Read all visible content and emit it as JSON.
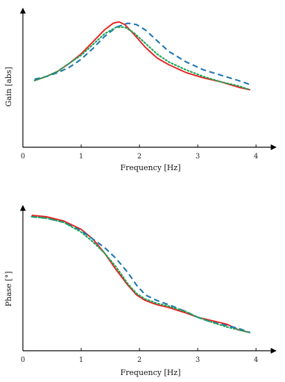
{
  "colors": {
    "red": "#e8231f",
    "blue": "#1f77b4",
    "green": "#1aa55a",
    "axis": "#000000"
  },
  "chart_data": [
    {
      "type": "line",
      "xlabel": "Frequency [Hz]",
      "ylabel": "Gain [abs]",
      "xlim": [
        0,
        4.2
      ],
      "ylim": [
        0,
        1
      ],
      "xticks": [
        0,
        1,
        2,
        3,
        4
      ],
      "show_yticks": false,
      "grid": false,
      "legend": "none",
      "series": [
        {
          "color": "#e8231f",
          "style": "solid",
          "x": [
            0.2,
            0.4,
            0.6,
            0.8,
            1.0,
            1.2,
            1.4,
            1.55,
            1.65,
            1.75,
            1.9,
            2.1,
            2.3,
            2.5,
            2.8,
            3.1,
            3.4,
            3.7,
            3.9
          ],
          "y": [
            0.5,
            0.53,
            0.57,
            0.63,
            0.7,
            0.79,
            0.88,
            0.93,
            0.94,
            0.92,
            0.85,
            0.75,
            0.67,
            0.62,
            0.56,
            0.52,
            0.49,
            0.45,
            0.43
          ]
        },
        {
          "color": "#1f77b4",
          "style": "dashed",
          "x": [
            0.2,
            0.4,
            0.6,
            0.8,
            1.0,
            1.2,
            1.4,
            1.6,
            1.8,
            1.95,
            2.1,
            2.3,
            2.5,
            2.8,
            3.1,
            3.4,
            3.7,
            3.9
          ],
          "y": [
            0.51,
            0.53,
            0.56,
            0.6,
            0.66,
            0.74,
            0.83,
            0.9,
            0.93,
            0.92,
            0.88,
            0.8,
            0.72,
            0.64,
            0.58,
            0.54,
            0.5,
            0.47
          ]
        },
        {
          "color": "#1aa55a",
          "style": "dotted",
          "x": [
            0.2,
            0.4,
            0.6,
            0.8,
            1.0,
            1.2,
            1.4,
            1.6,
            1.75,
            1.9,
            2.1,
            2.3,
            2.5,
            2.8,
            3.1,
            3.4,
            3.7,
            3.9
          ],
          "y": [
            0.5,
            0.53,
            0.57,
            0.63,
            0.69,
            0.77,
            0.85,
            0.9,
            0.9,
            0.86,
            0.78,
            0.7,
            0.64,
            0.58,
            0.53,
            0.49,
            0.46,
            0.43
          ]
        }
      ]
    },
    {
      "type": "line",
      "xlabel": "Frequency [Hz]",
      "ylabel": "Phase [°]",
      "xlim": [
        0,
        4.2
      ],
      "ylim": [
        0,
        1
      ],
      "xticks": [
        0,
        1,
        2,
        3,
        4
      ],
      "show_yticks": false,
      "grid": false,
      "legend": "none",
      "series": [
        {
          "color": "#e8231f",
          "style": "solid",
          "x": [
            0.15,
            0.4,
            0.7,
            1.0,
            1.2,
            1.4,
            1.6,
            1.8,
            1.95,
            2.1,
            2.3,
            2.5,
            2.8,
            3.0,
            3.2,
            3.5,
            3.7,
            3.9
          ],
          "y": [
            0.97,
            0.96,
            0.93,
            0.87,
            0.8,
            0.7,
            0.58,
            0.47,
            0.4,
            0.36,
            0.33,
            0.31,
            0.27,
            0.24,
            0.22,
            0.19,
            0.15,
            0.13
          ]
        },
        {
          "color": "#1f77b4",
          "style": "dashed",
          "x": [
            0.15,
            0.4,
            0.7,
            1.0,
            1.2,
            1.4,
            1.6,
            1.8,
            1.95,
            2.1,
            2.3,
            2.5,
            2.8,
            3.0,
            3.2,
            3.5,
            3.7,
            3.9
          ],
          "y": [
            0.96,
            0.95,
            0.92,
            0.86,
            0.8,
            0.74,
            0.66,
            0.56,
            0.47,
            0.4,
            0.36,
            0.33,
            0.28,
            0.24,
            0.21,
            0.18,
            0.16,
            0.13
          ]
        },
        {
          "color": "#1aa55a",
          "style": "dotted",
          "x": [
            0.15,
            0.4,
            0.7,
            1.0,
            1.2,
            1.4,
            1.6,
            1.8,
            1.95,
            2.1,
            2.3,
            2.5,
            2.8,
            3.0,
            3.2,
            3.5,
            3.7,
            3.9
          ],
          "y": [
            0.96,
            0.95,
            0.92,
            0.85,
            0.78,
            0.7,
            0.6,
            0.48,
            0.41,
            0.37,
            0.34,
            0.32,
            0.28,
            0.24,
            0.21,
            0.17,
            0.15,
            0.13
          ]
        }
      ]
    }
  ]
}
